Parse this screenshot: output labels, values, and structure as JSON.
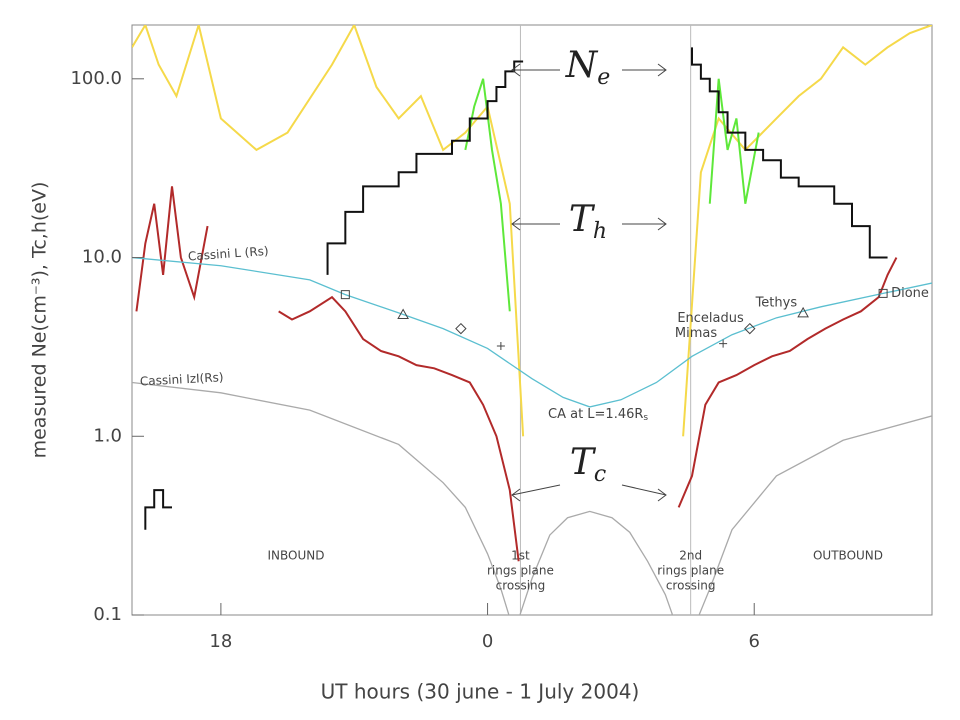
{
  "chart_data": {
    "type": "line",
    "log_y": true,
    "xlabel": "UT hours (30 june - 1 July 2004)",
    "ylabel": "measured Ne(cm⁻³), Tc,h(eV)",
    "xlim": [
      16,
      34
    ],
    "xticks": [
      {
        "value": 18,
        "label": "18"
      },
      {
        "value": 24,
        "label": "0"
      },
      {
        "value": 30,
        "label": "6"
      }
    ],
    "ylim": [
      0.1,
      200
    ],
    "yticks": [
      {
        "value": 0.1,
        "label": "0.1"
      },
      {
        "value": 1,
        "label": "1.0"
      },
      {
        "value": 10,
        "label": "10.0"
      },
      {
        "value": 100,
        "label": "100.0"
      }
    ],
    "series": [
      {
        "color": "#f5d94a",
        "x": [
          16,
          16.3,
          16.6,
          17.0,
          17.5,
          18.0,
          18.8,
          19.5,
          20.5,
          21.0,
          21.5,
          22.0,
          22.5,
          23.0,
          23.5,
          24.0,
          24.5,
          24.8,
          26.6,
          28.4,
          28.8,
          29.2,
          29.8,
          30.5,
          31.0,
          31.5,
          32.0,
          32.5,
          33.0,
          33.5,
          34.0
        ],
        "values": [
          150,
          200,
          120,
          80,
          200,
          60,
          40,
          50,
          120,
          200,
          90,
          60,
          80,
          40,
          50,
          70,
          20,
          1,
          null,
          1,
          30,
          60,
          40,
          60,
          80,
          100,
          150,
          120,
          150,
          180,
          200
        ]
      },
      {
        "color": "#5ee83a",
        "x": [
          23.5,
          23.7,
          23.9,
          24.1,
          24.3,
          24.5,
          26.6,
          29.0,
          29.2,
          29.4,
          29.6,
          29.8,
          30.1
        ],
        "values": [
          40,
          70,
          100,
          40,
          20,
          5,
          null,
          20,
          100,
          40,
          60,
          20,
          50
        ]
      },
      {
        "color": "#b22a2a",
        "x": [
          16.1,
          16.3,
          16.5,
          16.7,
          16.9,
          17.1,
          17.4,
          17.7,
          18.5,
          19.3,
          19.6,
          20.0,
          20.5,
          20.8,
          21.2,
          21.6,
          22.0,
          22.4,
          22.8,
          23.2,
          23.6,
          23.9,
          24.2,
          24.5,
          24.7,
          26.6,
          28.3,
          28.6,
          28.9,
          29.2,
          29.6,
          30.0,
          30.4,
          30.8,
          31.2,
          31.6,
          32.0,
          32.4,
          32.8,
          33.0,
          33.2
        ],
        "values": [
          5,
          12,
          20,
          8,
          25,
          10,
          6,
          15,
          null,
          5,
          4.5,
          5,
          6,
          5,
          3.5,
          3,
          2.8,
          2.5,
          2.4,
          2.2,
          2.0,
          1.5,
          1.0,
          0.5,
          0.2,
          null,
          0.4,
          0.6,
          1.5,
          2.0,
          2.2,
          2.5,
          2.8,
          3.0,
          3.5,
          4,
          4.5,
          5,
          6,
          8,
          10
        ]
      },
      {
        "color": "#111111",
        "x": [
          16.3,
          16.5,
          16.7,
          16.9,
          26.6,
          20.4,
          20.8,
          21.2,
          21.6,
          22.0,
          22.4,
          22.8,
          23.2,
          23.6,
          24.0,
          24.2,
          24.4,
          24.6,
          24.8,
          26.7,
          28.6,
          28.8,
          29.0,
          29.2,
          29.4,
          29.8,
          30.2,
          30.6,
          31.0,
          31.4,
          31.8,
          32.2,
          32.6,
          33.0
        ],
        "values": [
          0.3,
          0.4,
          0.5,
          0.4,
          null,
          8,
          12,
          18,
          25,
          25,
          30,
          38,
          38,
          45,
          60,
          75,
          90,
          110,
          125,
          null,
          150,
          120,
          100,
          85,
          65,
          50,
          40,
          35,
          28,
          25,
          25,
          20,
          15,
          10
        ],
        "step": true
      },
      {
        "name": "Cassini L (Rs)",
        "color": "#5bbfd0",
        "x": [
          16,
          18,
          20,
          20.8,
          22,
          23,
          24,
          25,
          25.7,
          26.3,
          27,
          27.8,
          28.6,
          29.5,
          30.5,
          31.5,
          32.9,
          34
        ],
        "values": [
          10,
          9,
          7.5,
          6.2,
          4.9,
          4.0,
          3.1,
          2.1,
          1.65,
          1.46,
          1.6,
          2.0,
          2.8,
          3.7,
          4.6,
          5.3,
          6.3,
          7.2
        ]
      },
      {
        "name": "Cassini IzI(Rs)",
        "color": "#aaaaaa",
        "x": [
          16,
          18,
          20,
          22,
          23,
          23.5,
          24.0,
          24.3,
          24.6,
          25.0,
          25.4,
          25.8,
          26.3,
          26.8,
          27.2,
          27.6,
          28.0,
          28.3,
          28.6,
          29.0,
          29.5,
          30.5,
          32,
          34
        ],
        "values": [
          2.0,
          1.75,
          1.4,
          0.9,
          0.55,
          0.4,
          0.22,
          0.14,
          0.08,
          0.16,
          0.28,
          0.35,
          0.38,
          0.35,
          0.29,
          0.2,
          0.13,
          0.08,
          0.08,
          0.14,
          0.3,
          0.6,
          0.95,
          1.3
        ]
      }
    ],
    "moons": [
      {
        "label": "Dione",
        "symbol": "square",
        "x": [
          20.8,
          32.9
        ],
        "values": [
          6.2,
          6.3
        ]
      },
      {
        "label": "Tethys",
        "symbol": "triangle",
        "x": [
          22.1,
          31.1
        ],
        "values": [
          4.8,
          4.9
        ]
      },
      {
        "label": "Enceladus",
        "symbol": "diamond",
        "x": [
          23.4,
          29.9
        ],
        "values": [
          4.0,
          4.0
        ]
      },
      {
        "label": "Mimas",
        "symbol": "plus",
        "x": [
          24.3,
          29.3
        ],
        "values": [
          3.2,
          3.3
        ]
      }
    ],
    "crossings": [
      {
        "x": 24.74,
        "label": [
          "1st",
          "rings plane",
          "crossing"
        ]
      },
      {
        "x": 28.57,
        "label": [
          "2nd",
          "rings plane",
          "crossing"
        ]
      }
    ],
    "phases": [
      "INBOUND",
      "OUTBOUND"
    ],
    "symbols": [
      {
        "text": "N",
        "sub": "e"
      },
      {
        "text": "T",
        "sub": "h"
      },
      {
        "text": "T",
        "sub": "c"
      }
    ],
    "ca_label": {
      "text": "CA at L=1.46R",
      "sub": "s"
    }
  }
}
